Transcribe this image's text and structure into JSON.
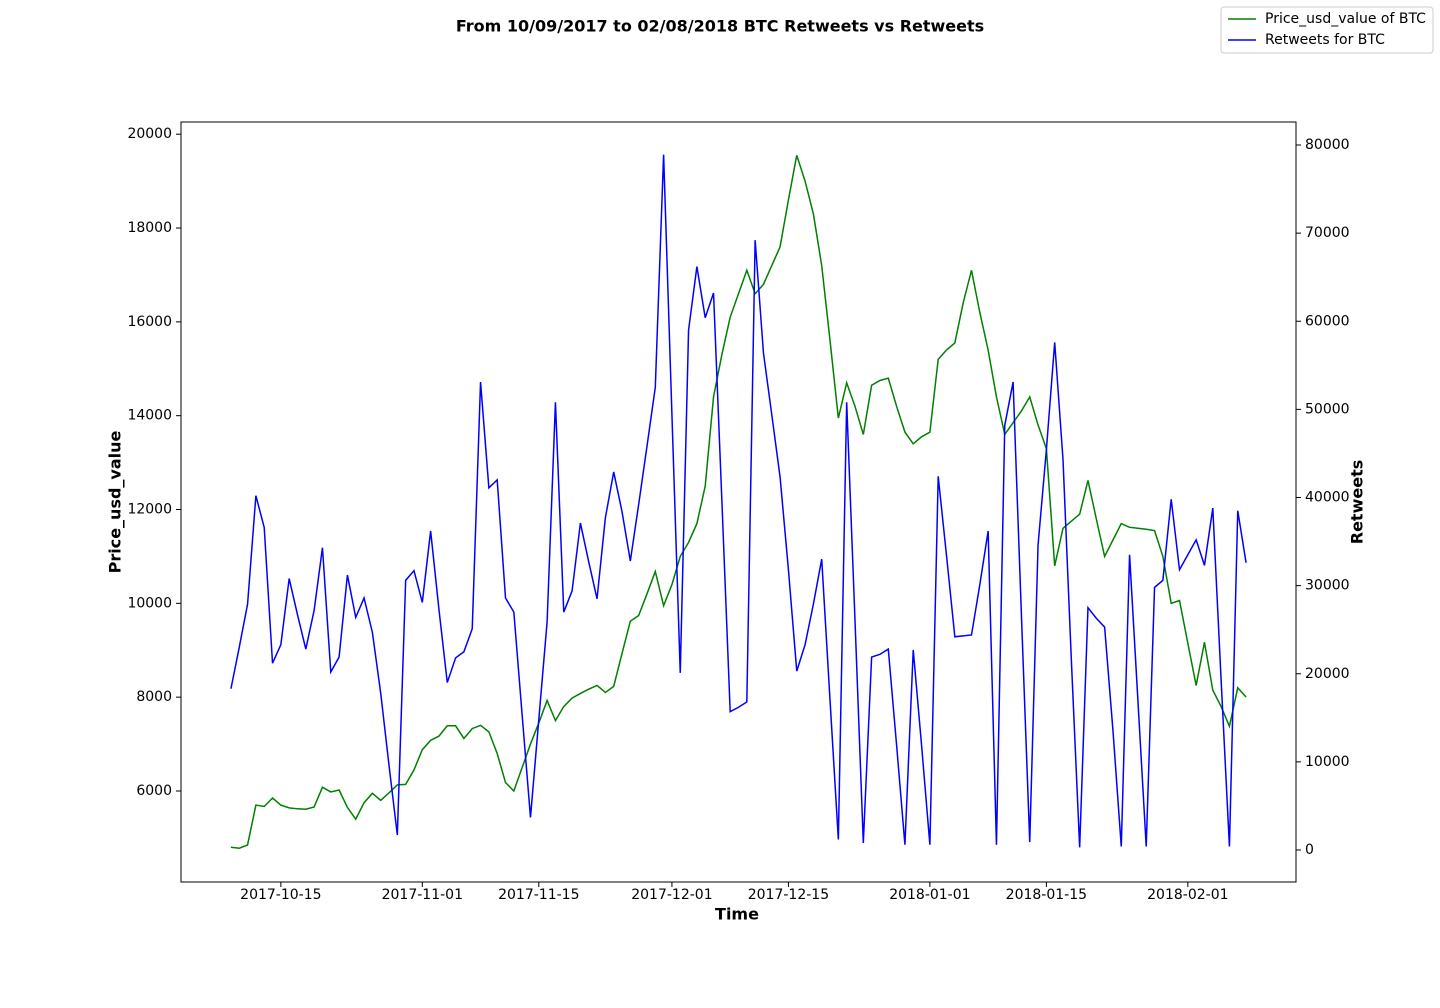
{
  "chart_data": {
    "type": "line",
    "title": "From 10/09/2017 to 02/08/2018 BTC Retweets vs Retweets",
    "xlabel": "Time",
    "ylabel": "Price_usd_value",
    "y2label": "Retweets",
    "x": [
      "2017-10-09",
      "2017-10-10",
      "2017-10-11",
      "2017-10-12",
      "2017-10-13",
      "2017-10-14",
      "2017-10-15",
      "2017-10-16",
      "2017-10-17",
      "2017-10-18",
      "2017-10-19",
      "2017-10-20",
      "2017-10-21",
      "2017-10-22",
      "2017-10-23",
      "2017-10-24",
      "2017-10-25",
      "2017-10-26",
      "2017-10-27",
      "2017-10-28",
      "2017-10-29",
      "2017-10-30",
      "2017-10-31",
      "2017-11-01",
      "2017-11-02",
      "2017-11-03",
      "2017-11-04",
      "2017-11-05",
      "2017-11-06",
      "2017-11-07",
      "2017-11-08",
      "2017-11-09",
      "2017-11-10",
      "2017-11-11",
      "2017-11-12",
      "2017-11-13",
      "2017-11-14",
      "2017-11-15",
      "2017-11-16",
      "2017-11-17",
      "2017-11-18",
      "2017-11-19",
      "2017-11-20",
      "2017-11-21",
      "2017-11-22",
      "2017-11-23",
      "2017-11-24",
      "2017-11-25",
      "2017-11-26",
      "2017-11-27",
      "2017-11-28",
      "2017-11-29",
      "2017-11-30",
      "2017-12-01",
      "2017-12-02",
      "2017-12-03",
      "2017-12-04",
      "2017-12-05",
      "2017-12-06",
      "2017-12-07",
      "2017-12-08",
      "2017-12-09",
      "2017-12-10",
      "2017-12-11",
      "2017-12-12",
      "2017-12-13",
      "2017-12-14",
      "2017-12-15",
      "2017-12-16",
      "2017-12-17",
      "2017-12-18",
      "2017-12-19",
      "2017-12-20",
      "2017-12-21",
      "2017-12-22",
      "2017-12-23",
      "2017-12-24",
      "2017-12-25",
      "2017-12-26",
      "2017-12-27",
      "2017-12-28",
      "2017-12-29",
      "2017-12-30",
      "2017-12-31",
      "2018-01-01",
      "2018-01-02",
      "2018-01-03",
      "2018-01-04",
      "2018-01-05",
      "2018-01-06",
      "2018-01-07",
      "2018-01-08",
      "2018-01-09",
      "2018-01-10",
      "2018-01-11",
      "2018-01-12",
      "2018-01-13",
      "2018-01-14",
      "2018-01-15",
      "2018-01-16",
      "2018-01-17",
      "2018-01-18",
      "2018-01-19",
      "2018-01-20",
      "2018-01-21",
      "2018-01-22",
      "2018-01-23",
      "2018-01-24",
      "2018-01-25",
      "2018-01-26",
      "2018-01-27",
      "2018-01-28",
      "2018-01-29",
      "2018-01-30",
      "2018-01-31",
      "2018-02-01",
      "2018-02-02",
      "2018-02-03",
      "2018-02-04",
      "2018-02-05",
      "2018-02-06",
      "2018-02-07",
      "2018-02-08"
    ],
    "series": [
      {
        "name": "Price_usd_value of BTC",
        "color": "#008000",
        "axis": "y",
        "values": [
          4800,
          4780,
          4850,
          5700,
          5670,
          5850,
          5700,
          5640,
          5620,
          5610,
          5660,
          6080,
          5980,
          6020,
          5650,
          5400,
          5750,
          5950,
          5800,
          5960,
          6130,
          6140,
          6450,
          6880,
          7080,
          7170,
          7390,
          7390,
          7120,
          7330,
          7400,
          7260,
          6800,
          6180,
          6000,
          6500,
          7000,
          7450,
          7930,
          7500,
          7800,
          7980,
          8080,
          8170,
          8250,
          8100,
          8230,
          8930,
          9620,
          9740,
          10200,
          10680,
          9950,
          10400,
          11000,
          11300,
          11700,
          12500,
          14400,
          15300,
          16100,
          16600,
          17100,
          16600,
          16800,
          17200,
          17600,
          18600,
          19550,
          19000,
          18300,
          17200,
          15600,
          13950,
          14700,
          14200,
          13600,
          14650,
          14750,
          14800,
          14200,
          13650,
          13400,
          13550,
          13650,
          15200,
          15400,
          15550,
          16400,
          17100,
          16200,
          15400,
          14400,
          13600,
          13850,
          14100,
          14400,
          13800,
          13300,
          10800,
          11600,
          11750,
          11900,
          12620,
          11800,
          11000,
          11350,
          11700,
          11620,
          11600,
          11580,
          11550,
          11000,
          10000,
          10060,
          9150,
          8250,
          9170,
          8150,
          7800,
          7380,
          8200,
          8000
        ]
      },
      {
        "name": "Retweets for BTC",
        "color": "#0000ff",
        "axis": "y2",
        "values": [
          18300,
          23000,
          27900,
          40200,
          36600,
          21200,
          23300,
          30800,
          26700,
          22800,
          27200,
          34300,
          20200,
          21900,
          31200,
          26400,
          28600,
          24700,
          17800,
          9600,
          1700,
          30600,
          31700,
          28100,
          36200,
          27300,
          19000,
          21800,
          22500,
          25100,
          53100,
          41100,
          42000,
          28600,
          27000,
          15300,
          3700,
          14800,
          25900,
          50800,
          27000,
          29400,
          37100,
          32700,
          28500,
          37700,
          42900,
          38400,
          32800,
          39200,
          45800,
          52500,
          78900,
          49400,
          20100,
          59000,
          66200,
          60400,
          63200,
          39700,
          15700,
          16200,
          16800,
          69200,
          56400,
          49400,
          42300,
          31800,
          20300,
          23300,
          27900,
          33000,
          17000,
          1200,
          50800,
          26100,
          800,
          21900,
          22200,
          22800,
          11900,
          600,
          22700,
          11900,
          600,
          42400,
          33400,
          24200,
          24300,
          24400,
          30100,
          36200,
          600,
          48200,
          53100,
          26700,
          900,
          34600,
          45400,
          57600,
          44300,
          21600,
          300,
          27500,
          26300,
          25300,
          13600,
          400,
          33500,
          17000,
          400,
          29800,
          30600,
          39800,
          31800,
          33500,
          35200,
          32300,
          38800,
          19300,
          400,
          38500,
          32600
        ]
      }
    ],
    "xlim": [
      "2017-10-03",
      "2018-02-14"
    ],
    "xticks": [
      "2017-10-15",
      "2017-11-01",
      "2017-11-15",
      "2017-12-01",
      "2017-12-15",
      "2018-01-01",
      "2018-01-15",
      "2018-02-01"
    ],
    "ylim": [
      4060,
      20260
    ],
    "yticks": [
      6000,
      8000,
      10000,
      12000,
      14000,
      16000,
      18000,
      20000
    ],
    "y2lim": [
      -3630,
      82610
    ],
    "y2ticks": [
      0,
      10000,
      20000,
      30000,
      40000,
      50000,
      60000,
      70000,
      80000
    ],
    "legend": "upper right"
  }
}
